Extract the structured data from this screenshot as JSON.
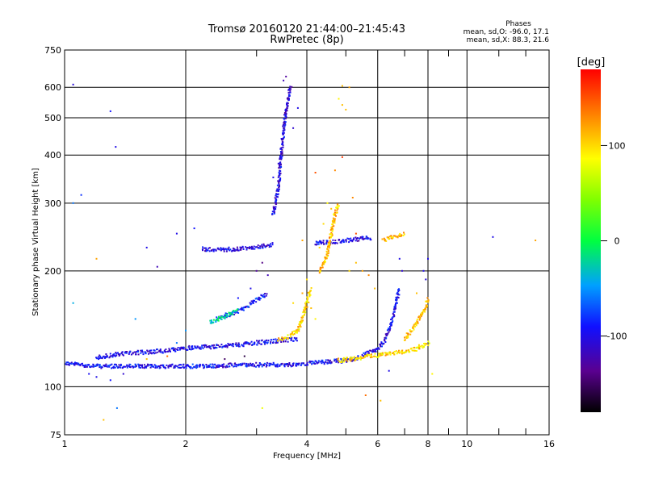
{
  "chart_data": {
    "type": "scatter",
    "title": "Tromsø 20160120 21:44:00–21:45:43",
    "subtitle": "RwPretec (8p)",
    "xlabel": "Frequency [MHz]",
    "ylabel": "Stationary phase Virtual Height [km]",
    "x_scale": "log",
    "y_scale": "log",
    "xlim": [
      1,
      16
    ],
    "ylim": [
      75,
      750
    ],
    "x_ticks": [
      1,
      2,
      4,
      6,
      8,
      10,
      16
    ],
    "x_tick_labels": [
      "1",
      "2",
      "4",
      "6",
      "8",
      "10",
      "16"
    ],
    "y_ticks": [
      75,
      100,
      200,
      300,
      400,
      500,
      600,
      750
    ],
    "y_tick_labels": [
      "75",
      "100",
      "200",
      "300",
      "400",
      "500",
      "600",
      "750"
    ],
    "grid": true,
    "info": {
      "heading": "Phases",
      "line_o": "mean, sd,O: -96.0, 17.1",
      "line_x": "mean, sd,X:  88.3, 21.6"
    },
    "colorbar": {
      "label": "[deg]",
      "min": -180,
      "max": 180,
      "ticks": [
        100,
        0,
        -100
      ],
      "tick_labels": [
        "100",
        "0",
        "-100"
      ]
    },
    "traces": [
      {
        "name": "",
        "phase": -95,
        "points": [
          [
            1.0,
            115
          ],
          [
            1.1,
            114
          ],
          [
            1.2,
            113
          ],
          [
            1.35,
            113
          ],
          [
            1.5,
            113
          ],
          [
            1.7,
            113
          ],
          [
            1.9,
            113
          ],
          [
            2.1,
            113
          ],
          [
            2.4,
            113
          ],
          [
            2.7,
            114
          ],
          [
            3.0,
            114
          ],
          [
            3.3,
            114
          ],
          [
            3.6,
            114
          ],
          [
            4.0,
            115
          ],
          [
            4.5,
            116
          ],
          [
            5.0,
            117
          ],
          [
            5.4,
            119
          ]
        ]
      },
      {
        "name": "",
        "phase": -100,
        "points": [
          [
            1.2,
            119
          ],
          [
            1.4,
            122
          ],
          [
            1.6,
            123
          ],
          [
            1.8,
            124
          ],
          [
            2.0,
            126
          ],
          [
            2.3,
            127
          ],
          [
            2.6,
            128
          ],
          [
            3.0,
            130
          ],
          [
            3.5,
            132
          ],
          [
            3.8,
            133
          ]
        ]
      },
      {
        "name": "",
        "phase": -105,
        "points": [
          [
            2.2,
            228
          ],
          [
            2.5,
            227
          ],
          [
            2.8,
            229
          ],
          [
            3.1,
            232
          ],
          [
            3.3,
            234
          ]
        ]
      },
      {
        "name": "",
        "phase": -100,
        "points": [
          [
            4.2,
            236
          ],
          [
            4.6,
            238
          ],
          [
            5.0,
            240
          ],
          [
            5.4,
            242
          ],
          [
            5.8,
            244
          ]
        ]
      },
      {
        "name": "",
        "phase": -100,
        "points": [
          [
            5.5,
            121
          ],
          [
            5.9,
            124
          ],
          [
            6.2,
            130
          ],
          [
            6.4,
            140
          ],
          [
            6.6,
            155
          ],
          [
            6.7,
            170
          ],
          [
            6.8,
            180
          ]
        ]
      },
      {
        "name": "",
        "phase": -105,
        "points": [
          [
            3.3,
            280
          ],
          [
            3.4,
            330
          ],
          [
            3.45,
            400
          ],
          [
            3.5,
            460
          ],
          [
            3.55,
            520
          ],
          [
            3.6,
            560
          ],
          [
            3.65,
            600
          ]
        ]
      },
      {
        "name": "",
        "phase": 100,
        "points": [
          [
            4.8,
            117
          ],
          [
            5.2,
            118
          ],
          [
            5.7,
            120
          ],
          [
            6.2,
            121
          ],
          [
            6.8,
            123
          ],
          [
            7.4,
            125
          ],
          [
            7.8,
            128
          ],
          [
            8.1,
            130
          ]
        ]
      },
      {
        "name": "",
        "phase": 110,
        "points": [
          [
            7.0,
            133
          ],
          [
            7.3,
            140
          ],
          [
            7.6,
            150
          ],
          [
            7.9,
            160
          ],
          [
            8.0,
            170
          ]
        ]
      },
      {
        "name": "",
        "phase": 100,
        "points": [
          [
            3.4,
            132
          ],
          [
            3.6,
            135
          ],
          [
            3.8,
            140
          ],
          [
            3.9,
            150
          ],
          [
            4.0,
            165
          ],
          [
            4.1,
            180
          ]
        ]
      },
      {
        "name": "",
        "phase": 110,
        "points": [
          [
            4.3,
            200
          ],
          [
            4.5,
            220
          ],
          [
            4.6,
            250
          ],
          [
            4.7,
            280
          ],
          [
            4.8,
            300
          ]
        ]
      },
      {
        "name": "",
        "phase": 110,
        "points": [
          [
            6.2,
            240
          ],
          [
            6.6,
            246
          ],
          [
            7.0,
            250
          ]
        ]
      },
      {
        "name": "",
        "phase": -90,
        "points": [
          [
            2.4,
            150
          ],
          [
            2.6,
            155
          ],
          [
            2.8,
            160
          ],
          [
            3.0,
            168
          ],
          [
            3.2,
            175
          ]
        ]
      },
      {
        "name": "",
        "phase": -20,
        "points": [
          [
            2.3,
            147
          ],
          [
            2.5,
            152
          ],
          [
            2.7,
            158
          ]
        ]
      }
    ],
    "scattered_points": [
      [
        1.05,
        610,
        -105
      ],
      [
        1.3,
        520,
        -90
      ],
      [
        1.34,
        420,
        -100
      ],
      [
        1.1,
        315,
        -80
      ],
      [
        1.05,
        300,
        -60
      ],
      [
        1.2,
        215,
        120
      ],
      [
        1.05,
        165,
        -40
      ],
      [
        1.25,
        82,
        110
      ],
      [
        1.35,
        88,
        -60
      ],
      [
        3.1,
        88,
        80
      ],
      [
        4.9,
        605,
        110
      ],
      [
        4.8,
        560,
        90
      ],
      [
        4.9,
        540,
        110
      ],
      [
        5.0,
        525,
        110
      ],
      [
        5.1,
        600,
        120
      ],
      [
        3.8,
        530,
        -100
      ],
      [
        3.7,
        470,
        -110
      ],
      [
        4.7,
        365,
        130
      ],
      [
        4.9,
        395,
        160
      ],
      [
        5.2,
        310,
        130
      ],
      [
        5.3,
        250,
        150
      ],
      [
        4.2,
        360,
        150
      ],
      [
        3.9,
        240,
        120
      ],
      [
        11.6,
        245,
        -100
      ],
      [
        14.8,
        240,
        120
      ],
      [
        1.5,
        150,
        -50
      ],
      [
        1.6,
        230,
        -100
      ],
      [
        1.7,
        205,
        -120
      ],
      [
        1.9,
        250,
        -100
      ],
      [
        2.1,
        258,
        -90
      ],
      [
        3.5,
        625,
        -120
      ],
      [
        3.55,
        640,
        -130
      ],
      [
        3.6,
        590,
        -110
      ],
      [
        3.4,
        380,
        -110
      ],
      [
        3.3,
        350,
        -100
      ],
      [
        4.4,
        265,
        100
      ],
      [
        4.5,
        300,
        90
      ],
      [
        4.6,
        290,
        110
      ],
      [
        4.3,
        230,
        100
      ],
      [
        4.4,
        210,
        110
      ],
      [
        5.1,
        200,
        100
      ],
      [
        5.3,
        210,
        110
      ],
      [
        5.5,
        200,
        120
      ],
      [
        5.7,
        195,
        130
      ],
      [
        5.9,
        180,
        110
      ],
      [
        6.4,
        110,
        -100
      ],
      [
        5.6,
        95,
        140
      ],
      [
        6.1,
        92,
        110
      ],
      [
        8.2,
        108,
        90
      ],
      [
        7.5,
        175,
        110
      ],
      [
        7.8,
        200,
        -100
      ],
      [
        8.0,
        215,
        -100
      ],
      [
        7.9,
        190,
        -105
      ],
      [
        6.9,
        200,
        -110
      ],
      [
        6.8,
        215,
        -100
      ],
      [
        3.9,
        175,
        120
      ],
      [
        4.0,
        190,
        100
      ],
      [
        4.1,
        160,
        110
      ],
      [
        4.2,
        150,
        90
      ],
      [
        3.7,
        165,
        100
      ],
      [
        3.0,
        200,
        -130
      ],
      [
        3.1,
        210,
        -140
      ],
      [
        3.2,
        195,
        -120
      ],
      [
        2.9,
        180,
        -100
      ],
      [
        2.7,
        170,
        -90
      ],
      [
        2.0,
        140,
        -50
      ],
      [
        1.9,
        130,
        -60
      ],
      [
        1.8,
        120,
        140
      ],
      [
        1.6,
        118,
        110
      ],
      [
        1.4,
        108,
        -110
      ],
      [
        1.3,
        104,
        -90
      ],
      [
        1.2,
        106,
        -100
      ],
      [
        1.15,
        108,
        -95
      ],
      [
        2.5,
        118,
        -150
      ],
      [
        2.8,
        120,
        -160
      ]
    ]
  }
}
